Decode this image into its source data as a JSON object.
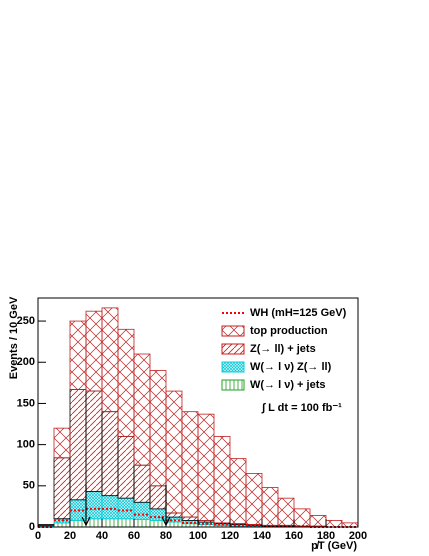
{
  "chart_data": {
    "type": "histogram",
    "x_label": "p̸T (GeV)",
    "y_label": "Events / 10 GeV",
    "annotation": "∫ L dt = 100 fb⁻¹",
    "bins": [
      0,
      10,
      20,
      30,
      40,
      50,
      60,
      70,
      80,
      90,
      100,
      110,
      120,
      130,
      140,
      150,
      160,
      170,
      180,
      190,
      200
    ],
    "series": [
      {
        "name": "WH (mH=125 GeV)",
        "color": "#ff0000",
        "stack": false,
        "values": [
          0,
          8,
          20,
          22,
          22,
          20,
          15,
          12,
          8,
          5,
          4,
          3,
          2,
          2,
          1,
          1,
          1,
          0,
          0,
          0
        ]
      },
      {
        "name": "top production",
        "color": "#c02020",
        "stack": true,
        "values": [
          0,
          36,
          83,
          97,
          126,
          130,
          135,
          140,
          148,
          128,
          129,
          105,
          79,
          62,
          46,
          33,
          21,
          13,
          8,
          5
        ]
      },
      {
        "name": "Z(→ ll) + jets",
        "color": "#d01818",
        "stack": true,
        "values": [
          1,
          74,
          134,
          122,
          102,
          75,
          45,
          28,
          5,
          4,
          2,
          1,
          1,
          1,
          1,
          1,
          1,
          1,
          0,
          0
        ]
      },
      {
        "name": "W(→ l ν) Z(→ ll)",
        "color": "#00d0e0",
        "stack": true,
        "values": [
          1,
          5,
          25,
          33,
          28,
          25,
          21,
          14,
          6,
          4,
          3,
          2,
          2,
          1,
          0,
          1,
          0,
          0,
          0,
          0
        ]
      },
      {
        "name": "W(→ l ν) + jets",
        "color": "#20a020",
        "stack": true,
        "values": [
          1,
          5,
          8,
          10,
          10,
          10,
          9,
          8,
          6,
          4,
          3,
          2,
          1,
          1,
          1,
          0,
          0,
          0,
          0,
          0
        ]
      }
    ],
    "cuts": [
      30,
      80
    ],
    "xlim": [
      0,
      200
    ],
    "ylim": [
      0,
      278
    ],
    "xticks": [
      0,
      20,
      40,
      60,
      80,
      100,
      120,
      140,
      160,
      180,
      200
    ],
    "yticks": [
      0,
      50,
      100,
      150,
      200,
      250
    ]
  }
}
